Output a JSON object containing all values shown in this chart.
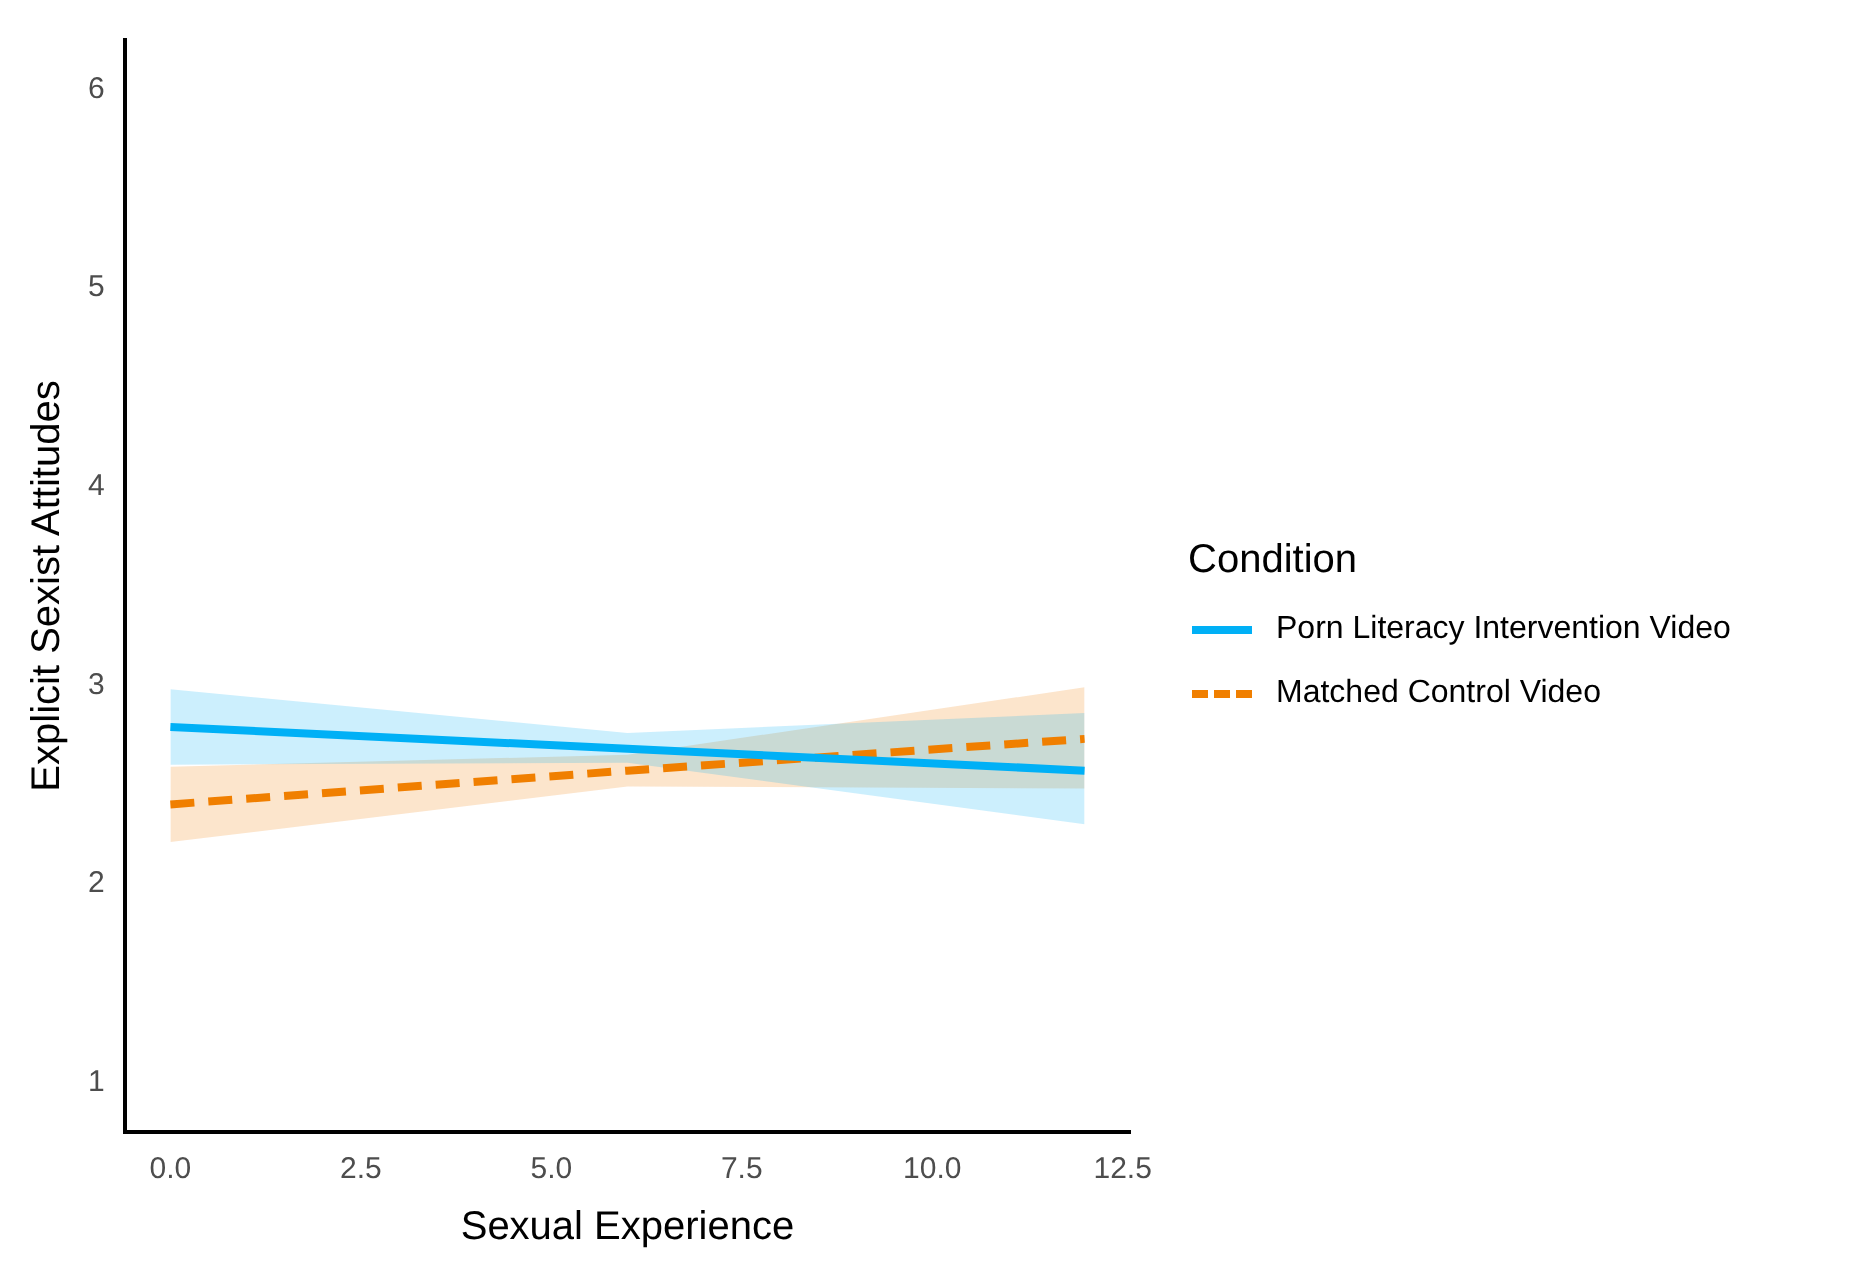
{
  "chart_data": {
    "type": "line",
    "xlabel": "Sexual Experience",
    "ylabel": "Explicit Sexist Attitudes",
    "legend_title": "Condition",
    "x": [
      0,
      6,
      12
    ],
    "series": [
      {
        "name": "Porn Literacy Intervention Video",
        "color": "#00b0f6",
        "values": [
          2.79,
          2.68,
          2.57
        ],
        "lower": [
          2.6,
          2.61,
          2.3
        ],
        "upper": [
          2.98,
          2.76,
          2.86
        ],
        "line_style": "solid"
      },
      {
        "name": "Matched Control Video",
        "color": "#f07f00",
        "values": [
          2.4,
          2.57,
          2.73
        ],
        "lower": [
          2.21,
          2.49,
          2.48
        ],
        "upper": [
          2.59,
          2.65,
          2.99
        ],
        "line_style": "dashed"
      }
    ],
    "xlim": [
      -0.6,
      12.6
    ],
    "xticks": [
      {
        "value": 0,
        "label": "0.0"
      },
      {
        "value": 2.5,
        "label": "2.5"
      },
      {
        "value": 5,
        "label": "5.0"
      },
      {
        "value": 7.5,
        "label": "7.5"
      },
      {
        "value": 10,
        "label": "10.0"
      },
      {
        "value": 12.5,
        "label": "12.5"
      }
    ],
    "ylim": [
      0.75,
      6.25
    ],
    "yticks": [
      1,
      2,
      3,
      4,
      5,
      6
    ],
    "grid": false,
    "legend": "right",
    "marker": "none"
  }
}
